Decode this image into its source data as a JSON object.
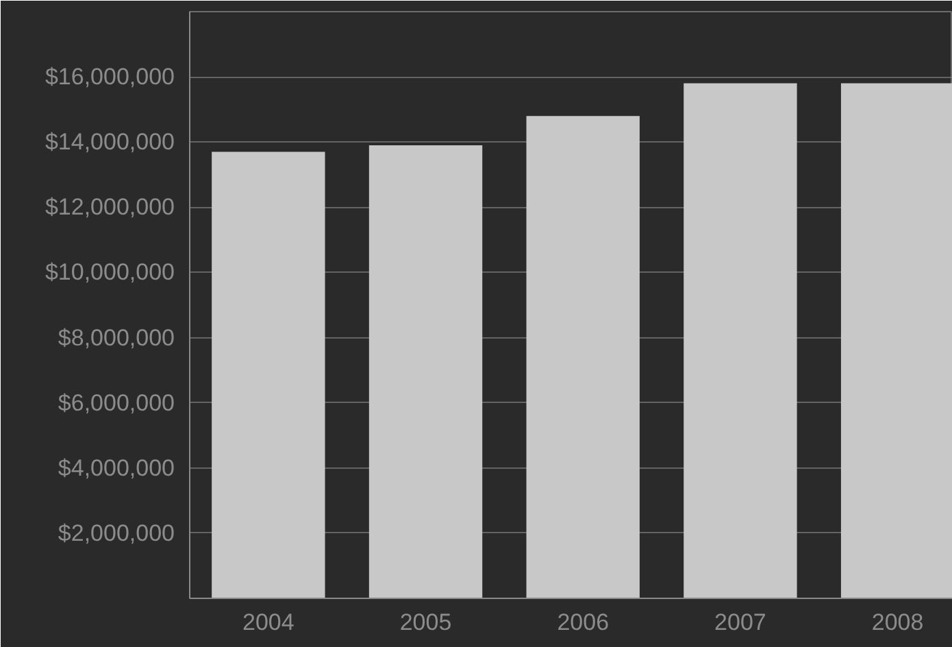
{
  "chart_data": {
    "type": "bar",
    "categories": [
      "2004",
      "2005",
      "2006",
      "2007",
      "2008"
    ],
    "values": [
      13700000,
      13900000,
      14800000,
      15800000,
      15800000
    ],
    "color": "#c8c8c8",
    "ylim": [
      0,
      18000000
    ],
    "yticks": [
      {
        "value": 2000000,
        "label": "$2,000,000"
      },
      {
        "value": 4000000,
        "label": "$4,000,000"
      },
      {
        "value": 6000000,
        "label": "$6,000,000"
      },
      {
        "value": 8000000,
        "label": "$8,000,000"
      },
      {
        "value": 10000000,
        "label": "$10,000,000"
      },
      {
        "value": 12000000,
        "label": "$12,000,000"
      },
      {
        "value": 14000000,
        "label": "$14,000,000"
      },
      {
        "value": 16000000,
        "label": "$16,000,000"
      },
      {
        "value": 18000000,
        "label": null
      }
    ],
    "grid": "y"
  }
}
